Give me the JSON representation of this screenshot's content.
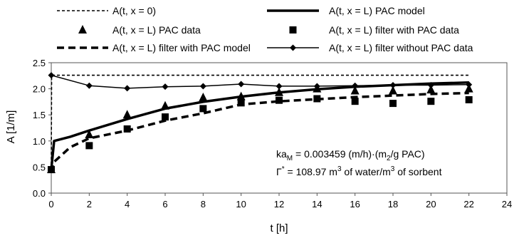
{
  "chart_data": {
    "type": "line",
    "xlabel": "t [h]",
    "ylabel": "A [1/m]",
    "xlim": [
      0,
      24
    ],
    "ylim": [
      0.0,
      2.5
    ],
    "xticks": [
      "0",
      "2",
      "4",
      "6",
      "8",
      "10",
      "12",
      "14",
      "16",
      "18",
      "20",
      "22",
      "24"
    ],
    "yticks": [
      "0.0",
      "0.5",
      "1.0",
      "1.5",
      "2.0",
      "2.5"
    ],
    "grid": false,
    "legend_position": "top",
    "series": [
      {
        "name": "A(t, x = 0)",
        "style": "thin-dashed-line",
        "x": [
          0,
          0.02,
          22
        ],
        "y": [
          0.45,
          2.26,
          2.26
        ]
      },
      {
        "name": "A(t, x = L) PAC model",
        "style": "thick-solid-line",
        "x": [
          0,
          0.15,
          1,
          2,
          4,
          6,
          8,
          10,
          12,
          14,
          16,
          18,
          20,
          22
        ],
        "y": [
          0.45,
          1.0,
          1.08,
          1.2,
          1.42,
          1.62,
          1.75,
          1.85,
          1.93,
          1.99,
          2.04,
          2.07,
          2.1,
          2.12
        ]
      },
      {
        "name": "A(t, x = L) PAC data",
        "style": "triangle-markers",
        "x": [
          0,
          2,
          4,
          6,
          8,
          10,
          12,
          14,
          16,
          18,
          20,
          22
        ],
        "y": [
          0.45,
          1.12,
          1.5,
          1.67,
          1.83,
          1.85,
          1.93,
          2.0,
          1.96,
          1.96,
          1.98,
          2.0
        ]
      },
      {
        "name": "A(t, x = L) filter with PAC data",
        "style": "square-markers",
        "x": [
          0,
          2,
          4,
          6,
          8,
          10,
          12,
          14,
          16,
          18,
          20,
          22
        ],
        "y": [
          0.45,
          0.91,
          1.23,
          1.46,
          1.62,
          1.73,
          1.78,
          1.81,
          1.76,
          1.72,
          1.76,
          1.79
        ]
      },
      {
        "name": "A(t, x = L) filter with PAC model",
        "style": "thick-dashed-line",
        "x": [
          0,
          0.15,
          1,
          2,
          4,
          6,
          8,
          10,
          12,
          14,
          16,
          18,
          20,
          22
        ],
        "y": [
          0.4,
          0.6,
          0.88,
          1.05,
          1.2,
          1.39,
          1.53,
          1.7,
          1.76,
          1.8,
          1.84,
          1.87,
          1.9,
          1.92
        ]
      },
      {
        "name": "A(t, x = L) filter without PAC data",
        "style": "thin-line-diamond-markers",
        "x": [
          0,
          2,
          4,
          6,
          8,
          10,
          12,
          14,
          16,
          18,
          20,
          22
        ],
        "y": [
          2.26,
          2.06,
          2.01,
          2.04,
          2.05,
          2.09,
          2.05,
          2.05,
          2.06,
          2.07,
          2.07,
          2.08
        ]
      }
    ],
    "annotations": [
      {
        "parts": [
          "ka",
          "M",
          " = 0.003459 (m/h)·(m",
          "2",
          "/g PAC)"
        ]
      },
      {
        "parts": [
          "Γ",
          "*",
          " = 108.97 m",
          "3",
          " of water/m",
          "3",
          " of sorbent"
        ]
      }
    ],
    "colors": {
      "line": "#000000",
      "background": "#ffffff"
    }
  }
}
